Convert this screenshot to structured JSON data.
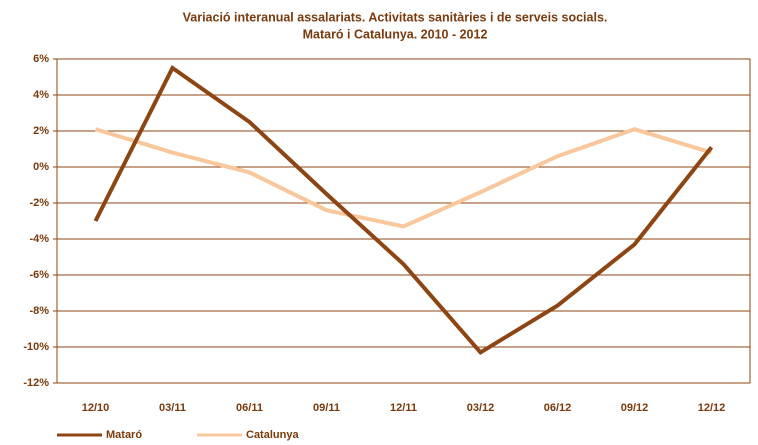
{
  "chart_data": {
    "type": "line",
    "title": [
      "Variació interanual assalariats. Activitats sanitàries i de serveis socials.",
      "Mataró i Catalunya. 2010 - 2012"
    ],
    "categories": [
      "12/10",
      "03/11",
      "06/11",
      "09/11",
      "12/11",
      "03/12",
      "06/12",
      "09/12",
      "12/12"
    ],
    "series": [
      {
        "name": "Mataró",
        "color": "#8c4513",
        "values": [
          -3.0,
          5.5,
          2.5,
          -1.5,
          -5.4,
          -10.3,
          -7.7,
          -4.3,
          1.1
        ]
      },
      {
        "name": "Catalunya",
        "color": "#f8c79c",
        "values": [
          2.1,
          0.8,
          -0.3,
          -2.4,
          -3.3,
          -1.4,
          0.6,
          2.1,
          0.8
        ]
      }
    ],
    "ylim": [
      -12,
      6
    ],
    "yticks": [
      {
        "value": -12,
        "label": "-12%"
      },
      {
        "value": -10,
        "label": "-10%"
      },
      {
        "value": -8,
        "label": "-8%"
      },
      {
        "value": -6,
        "label": "-6%"
      },
      {
        "value": -4,
        "label": "-4%"
      },
      {
        "value": -2,
        "label": "-2%"
      },
      {
        "value": 0,
        "label": "0%"
      },
      {
        "value": 2,
        "label": "2%"
      },
      {
        "value": 4,
        "label": "4%"
      },
      {
        "value": 6,
        "label": "6%"
      }
    ],
    "grid": true,
    "legend": "bottom"
  }
}
